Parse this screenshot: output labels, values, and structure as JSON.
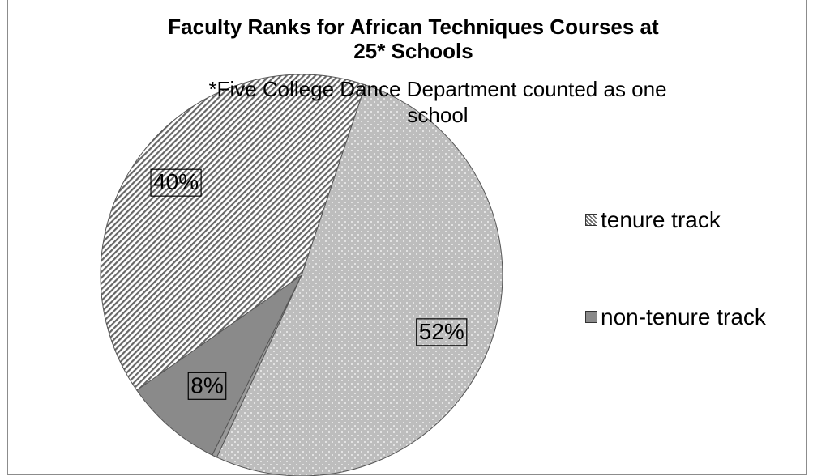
{
  "chart_data": {
    "type": "pie",
    "title": "Faculty Ranks for African Techniques Courses at 25* Schools",
    "title_lines": [
      "Faculty Ranks for African Techniques Courses at",
      "25* Schools"
    ],
    "subtitle": "*Five College Dance Department counted as one school",
    "subtitle_lines": [
      "*Five College Dance Department counted as one",
      "school"
    ],
    "slices": [
      {
        "label": "",
        "value": 52,
        "data_label": "52%",
        "pattern": "dots",
        "color": "#bdbdbd"
      },
      {
        "label": "",
        "value": 0.4,
        "data_label": "",
        "pattern": "solid",
        "color": "#9a9a9a"
      },
      {
        "label": "non-tenure track",
        "value": 8,
        "data_label": "8%",
        "pattern": "solid",
        "color": "#8a8a8a"
      },
      {
        "label": "tenure track",
        "value": 40,
        "data_label": "40%",
        "pattern": "hatch",
        "color": "#9e9e9e"
      }
    ],
    "legend": [
      {
        "label": "tenure track",
        "pattern": "hatch"
      },
      {
        "label": "non-tenure track",
        "pattern": "solid"
      }
    ],
    "legend_position": "right"
  }
}
